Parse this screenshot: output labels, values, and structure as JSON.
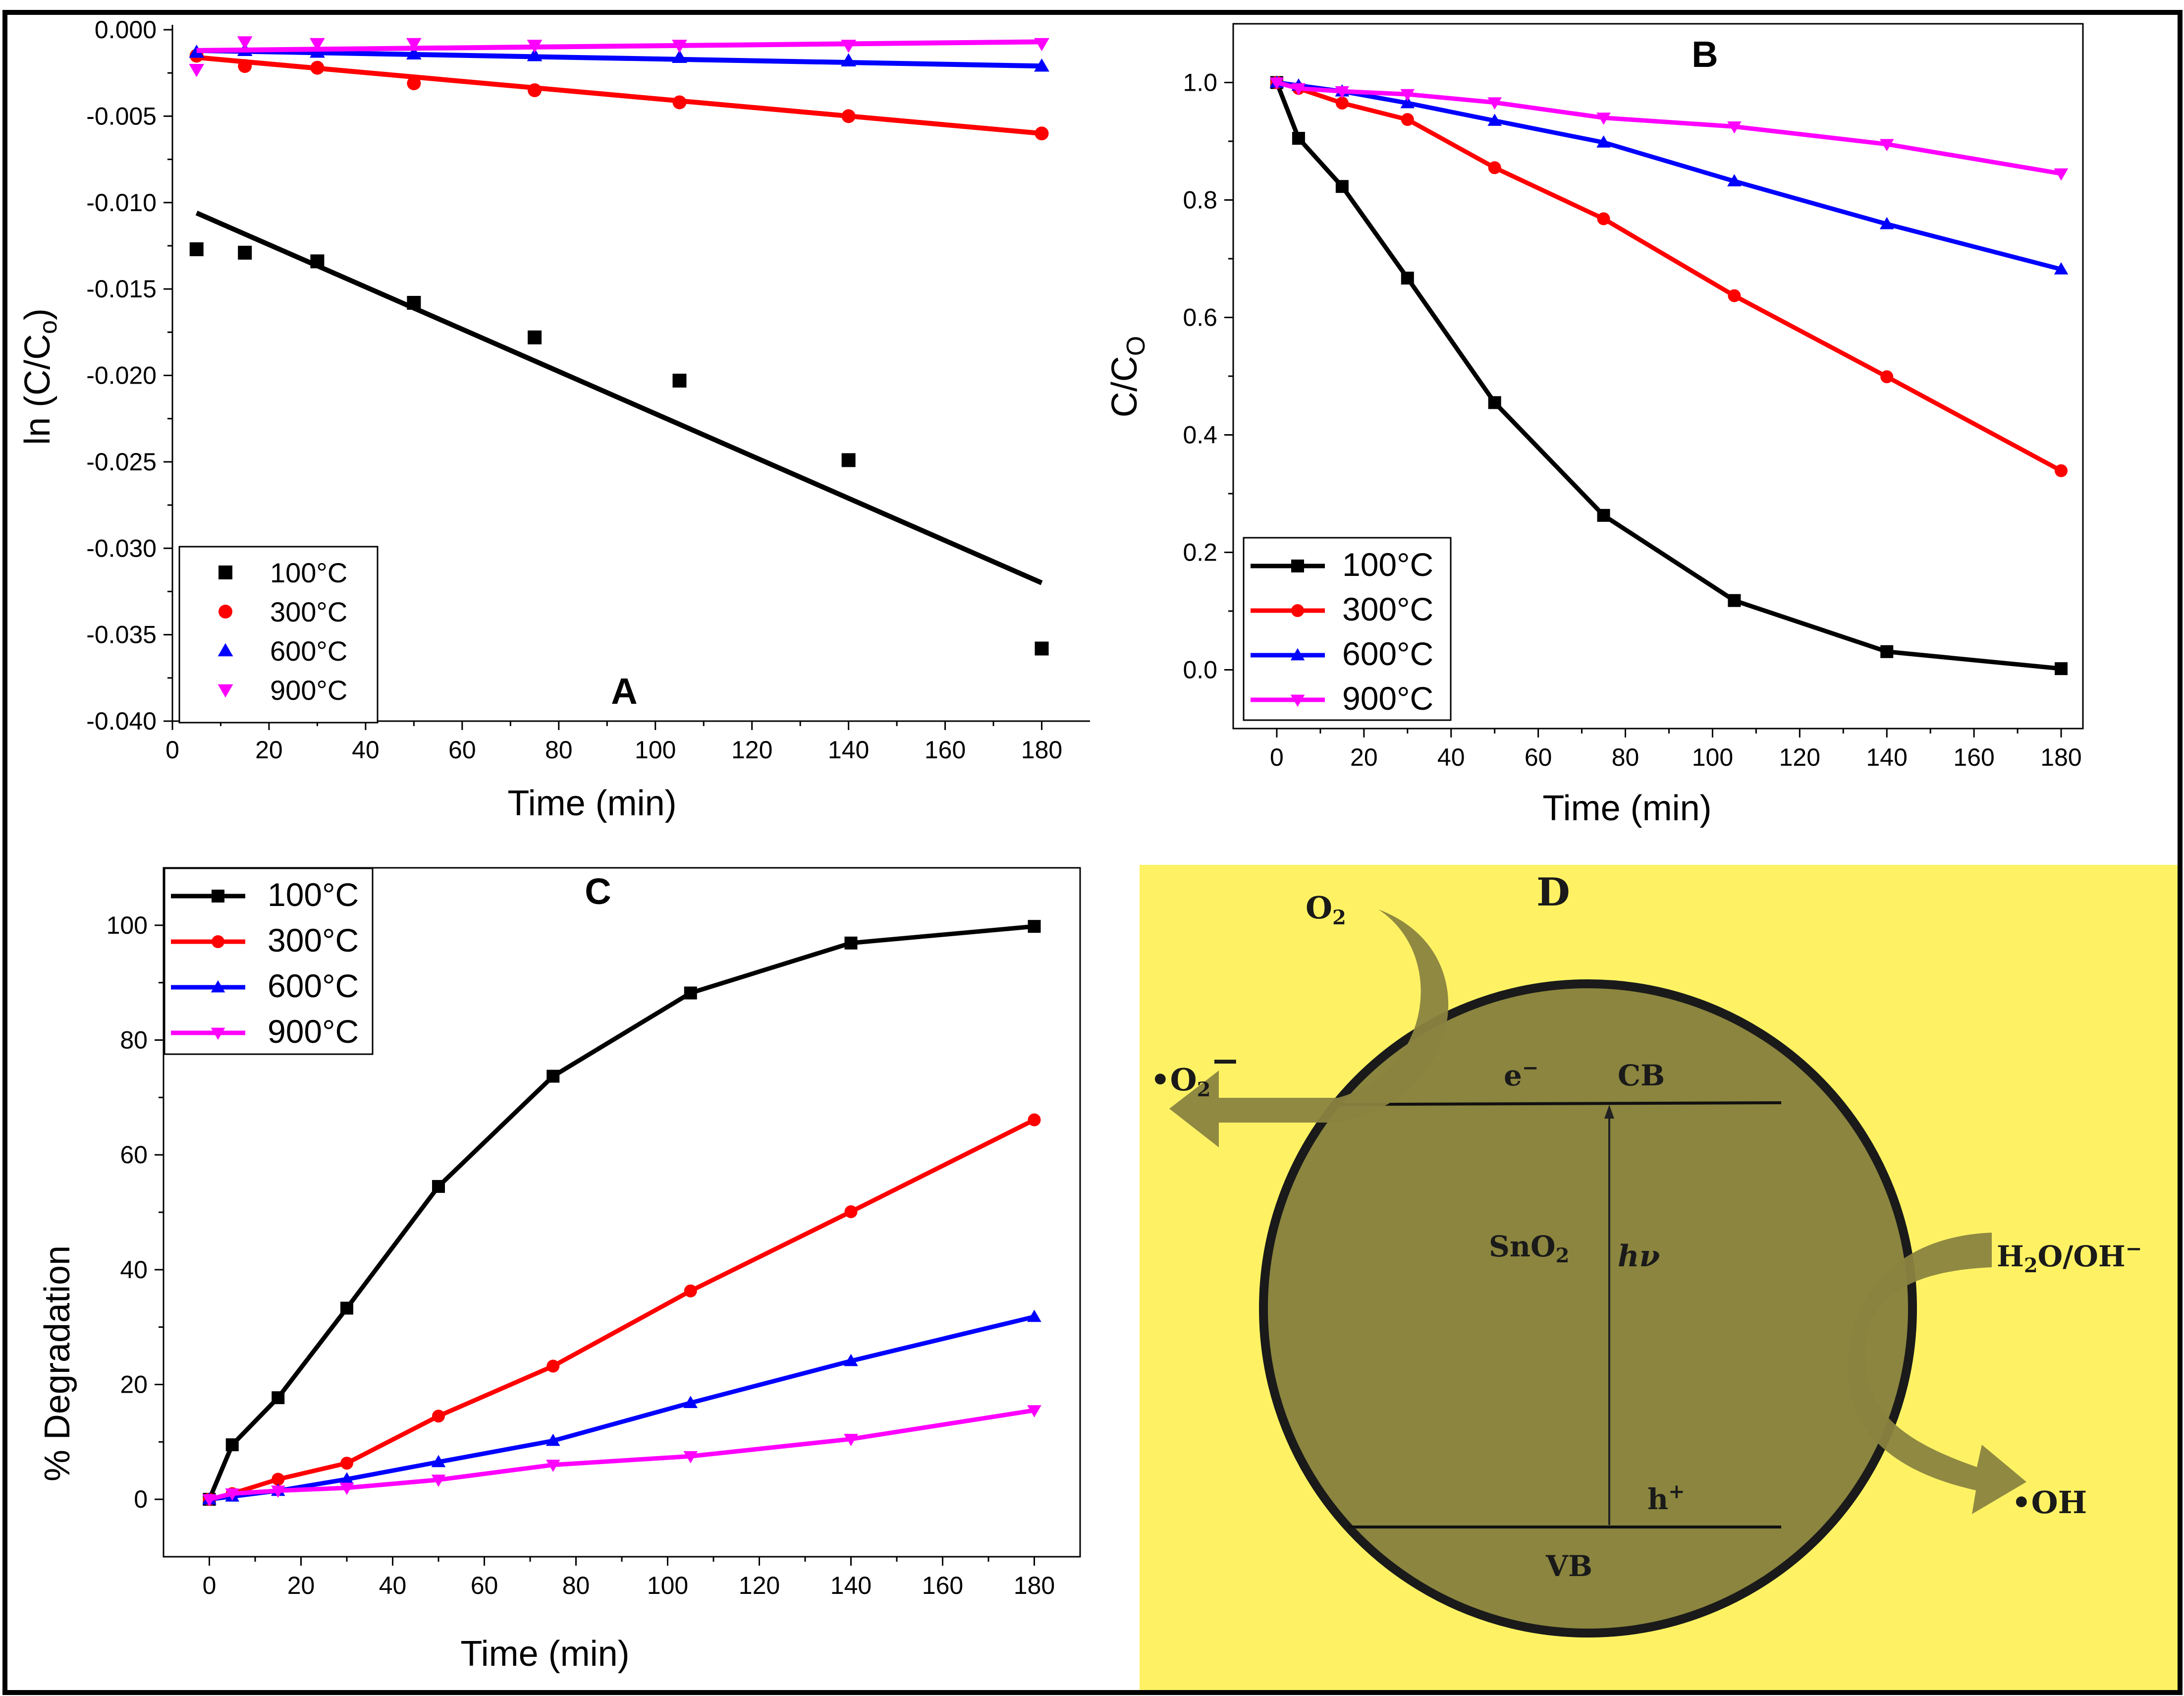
{
  "colors": {
    "100C": "#000000",
    "300C": "#ff0000",
    "600C": "#0000ff",
    "900C": "#ff00ff",
    "diagram_bg": "#fef264",
    "particle": "#8b853f",
    "arrow": "#8a8340"
  },
  "chart_data": [
    {
      "panel": "A",
      "type": "scatter",
      "title": "A",
      "xlabel": "Time (min)",
      "ylabel": "ln (C/C",
      "ylabel_sub": "o",
      "ylabel_end": ")",
      "xlim": [
        0,
        190
      ],
      "ylim": [
        -0.04,
        0.0
      ],
      "xticks": [
        0,
        20,
        40,
        60,
        80,
        100,
        120,
        140,
        160,
        180
      ],
      "yticks": [
        0.0,
        -0.005,
        -0.01,
        -0.015,
        -0.02,
        -0.025,
        -0.03,
        -0.035,
        -0.04
      ],
      "ytick_labels": [
        "0.000",
        "-0.005",
        "-0.010",
        "-0.015",
        "-0.020",
        "-0.025",
        "-0.030",
        "-0.035",
        "-0.040"
      ],
      "legend": [
        "100°C",
        "300°C",
        "600°C",
        "900°C"
      ],
      "legend_position": "bottom-left",
      "series": [
        {
          "name": "100°C",
          "key": "100C",
          "marker": "square",
          "x": [
            5,
            15,
            30,
            50,
            75,
            105,
            140,
            180
          ],
          "y": [
            -0.0127,
            -0.0129,
            -0.0134,
            -0.0158,
            -0.0178,
            -0.0203,
            -0.0249,
            -0.0358
          ],
          "fit": [
            [
              5,
              -0.0106
            ],
            [
              180,
              -0.032
            ]
          ]
        },
        {
          "name": "300°C",
          "key": "300C",
          "marker": "circle",
          "x": [
            5,
            15,
            30,
            50,
            75,
            105,
            140,
            180
          ],
          "y": [
            -0.0015,
            -0.0021,
            -0.0022,
            -0.0031,
            -0.0035,
            -0.0042,
            -0.005,
            -0.006
          ],
          "fit": [
            [
              5,
              -0.0016
            ],
            [
              180,
              -0.006
            ]
          ]
        },
        {
          "name": "600°C",
          "key": "600C",
          "marker": "triangle-up",
          "x": [
            5,
            15,
            30,
            50,
            75,
            105,
            140,
            180
          ],
          "y": [
            -0.0013,
            -0.0012,
            -0.0013,
            -0.0014,
            -0.0015,
            -0.0016,
            -0.0018,
            -0.0021
          ],
          "fit": [
            [
              5,
              -0.0012
            ],
            [
              180,
              -0.0021
            ]
          ]
        },
        {
          "name": "900°C",
          "key": "900C",
          "marker": "triangle-down",
          "x": [
            5,
            15,
            30,
            50,
            75,
            105,
            140,
            180
          ],
          "y": [
            -0.0023,
            -0.0007,
            -0.0008,
            -0.0008,
            -0.0009,
            -0.0009,
            -0.0009,
            -0.0008
          ],
          "fit": [
            [
              5,
              -0.0012
            ],
            [
              180,
              -0.0007
            ]
          ]
        }
      ]
    },
    {
      "panel": "B",
      "type": "line",
      "title": "B",
      "xlabel": "Time (min)",
      "ylabel": "C/C",
      "ylabel_sub": "O",
      "xlim": [
        -10,
        185
      ],
      "ylim": [
        -0.1,
        1.1
      ],
      "xticks": [
        0,
        20,
        40,
        60,
        80,
        100,
        120,
        140,
        160,
        180
      ],
      "yticks": [
        0.0,
        0.2,
        0.4,
        0.6,
        0.8,
        1.0
      ],
      "ytick_labels": [
        "0.0",
        "0.2",
        "0.4",
        "0.6",
        "0.8",
        "1.0"
      ],
      "legend": [
        "100°C",
        "300°C",
        "600°C",
        "900°C"
      ],
      "legend_position": "bottom-left",
      "series": [
        {
          "name": "100°C",
          "key": "100C",
          "marker": "square",
          "x": [
            0,
            5,
            15,
            30,
            50,
            75,
            105,
            140,
            180
          ],
          "y": [
            1.0,
            0.905,
            0.823,
            0.667,
            0.455,
            0.263,
            0.118,
            0.031,
            0.002
          ]
        },
        {
          "name": "300°C",
          "key": "300C",
          "marker": "circle",
          "x": [
            0,
            5,
            15,
            30,
            50,
            75,
            105,
            140,
            180
          ],
          "y": [
            1.0,
            0.99,
            0.965,
            0.937,
            0.855,
            0.768,
            0.637,
            0.499,
            0.339
          ]
        },
        {
          "name": "600°C",
          "key": "600C",
          "marker": "triangle-up",
          "x": [
            0,
            5,
            15,
            30,
            50,
            75,
            105,
            140,
            180
          ],
          "y": [
            1.0,
            0.995,
            0.985,
            0.965,
            0.935,
            0.898,
            0.832,
            0.759,
            0.682
          ]
        },
        {
          "name": "900°C",
          "key": "900C",
          "marker": "triangle-down",
          "x": [
            0,
            5,
            15,
            30,
            50,
            75,
            105,
            140,
            180
          ],
          "y": [
            1.0,
            0.99,
            0.985,
            0.98,
            0.966,
            0.94,
            0.925,
            0.895,
            0.845
          ]
        }
      ]
    },
    {
      "panel": "C",
      "type": "line",
      "title": "C",
      "xlabel": "Time (min)",
      "ylabel": "% Degradation",
      "xlim": [
        -10,
        190
      ],
      "ylim": [
        -10,
        110
      ],
      "xticks": [
        0,
        20,
        40,
        60,
        80,
        100,
        120,
        140,
        160,
        180
      ],
      "yticks": [
        0,
        20,
        40,
        60,
        80,
        100
      ],
      "ytick_labels": [
        "0",
        "20",
        "40",
        "60",
        "80",
        "100"
      ],
      "legend": [
        "100°C",
        "300°C",
        "600°C",
        "900°C"
      ],
      "legend_position": "top-left",
      "series": [
        {
          "name": "100°C",
          "key": "100C",
          "marker": "square",
          "x": [
            0,
            5,
            15,
            30,
            50,
            75,
            105,
            140,
            180
          ],
          "y": [
            0,
            9.5,
            17.7,
            33.3,
            54.5,
            73.7,
            88.2,
            96.9,
            99.8
          ]
        },
        {
          "name": "300°C",
          "key": "300C",
          "marker": "circle",
          "x": [
            0,
            5,
            15,
            30,
            50,
            75,
            105,
            140,
            180
          ],
          "y": [
            0,
            1.0,
            3.5,
            6.3,
            14.5,
            23.2,
            36.3,
            50.1,
            66.1
          ]
        },
        {
          "name": "600°C",
          "key": "600C",
          "marker": "triangle-up",
          "x": [
            0,
            5,
            15,
            30,
            50,
            75,
            105,
            140,
            180
          ],
          "y": [
            0,
            0.5,
            1.5,
            3.5,
            6.5,
            10.2,
            16.8,
            24.1,
            31.8
          ]
        },
        {
          "name": "900°C",
          "key": "900C",
          "marker": "triangle-down",
          "x": [
            0,
            5,
            15,
            30,
            50,
            75,
            105,
            140,
            180
          ],
          "y": [
            0,
            1.0,
            1.5,
            2.0,
            3.4,
            6.0,
            7.5,
            10.5,
            15.5
          ]
        }
      ]
    }
  ],
  "diagram": {
    "label": "D",
    "o2": "O",
    "o2_sub": "2",
    "superoxide_dot": "•",
    "superoxide": "O",
    "superoxide_sub": "2",
    "superoxide_charge": "−",
    "electron": "e",
    "electron_charge": "−",
    "cb": "CB",
    "vb": "VB",
    "material": "SnO",
    "material_sub": "2",
    "photon": "hν",
    "hole": "h",
    "hole_charge": "+",
    "water": "H",
    "water_sub": "2",
    "water_end": "O/OH",
    "water_charge": "−",
    "hydroxyl_dot": "•",
    "hydroxyl": "OH"
  }
}
